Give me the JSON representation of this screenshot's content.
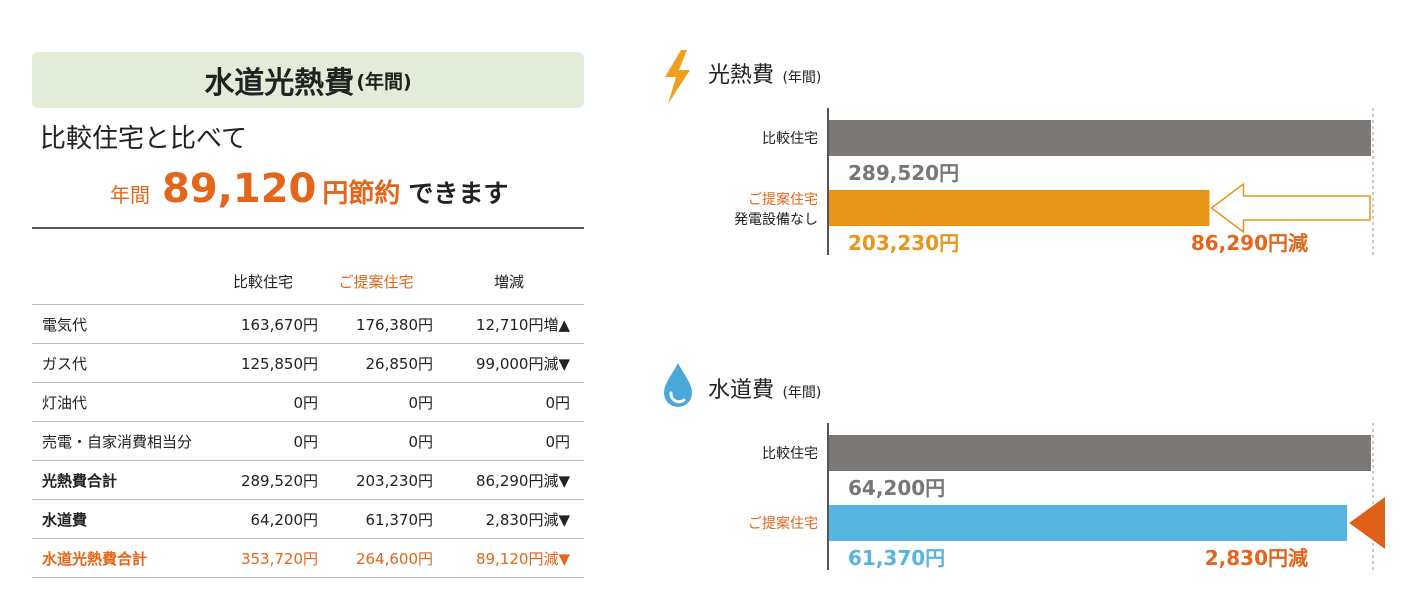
{
  "summary": {
    "title": "水道光熱費",
    "title_suffix": "(年間)",
    "subtitle": "比較住宅と比べて",
    "savings_prefix": "年間",
    "savings_amount": "89,120",
    "savings_unit": "円節約",
    "savings_suffix": "できます"
  },
  "table": {
    "headers": [
      "",
      "比較住宅",
      "ご提案住宅",
      "増減"
    ],
    "rows": [
      {
        "label": "電気代",
        "comparison": "163,670円",
        "proposed": "176,380円",
        "change": "12,710円増▲",
        "style": "normal"
      },
      {
        "label": "ガス代",
        "comparison": "125,850円",
        "proposed": "26,850円",
        "change": "99,000円減▼",
        "style": "normal"
      },
      {
        "label": "灯油代",
        "comparison": "0円",
        "proposed": "0円",
        "change": "0円",
        "style": "normal"
      },
      {
        "label": "売電・自家消費相当分",
        "comparison": "0円",
        "proposed": "0円",
        "change": "0円",
        "style": "normal"
      },
      {
        "label": "光熱費合計",
        "comparison": "289,520円",
        "proposed": "203,230円",
        "change": "86,290円減▼",
        "style": "bold"
      },
      {
        "label": "水道費",
        "comparison": "64,200円",
        "proposed": "61,370円",
        "change": "2,830円減▼",
        "style": "bold"
      },
      {
        "label": "水道光熱費合計",
        "comparison": "353,720円",
        "proposed": "264,600円",
        "change": "89,120円減▼",
        "style": "total"
      }
    ]
  },
  "chart_data": [
    {
      "type": "bar",
      "orientation": "horizontal",
      "title": "光熱費",
      "title_suffix": "(年間)",
      "icon": "lightning-icon",
      "categories": [
        "比較住宅",
        "ご提案住宅"
      ],
      "category_sublabels": [
        "",
        "発電設備なし"
      ],
      "values": [
        289520,
        203230
      ],
      "value_labels": [
        "289,520円",
        "203,230円"
      ],
      "colors": [
        "#7b7875",
        "#e8951a"
      ],
      "label_colors": [
        "#777777",
        "#e8951a"
      ],
      "category_label_colors": [
        "#222222",
        "#e5651a"
      ],
      "difference_label": "86,290円減",
      "difference_marker": "outline-arrow",
      "xlim": [
        0,
        289520
      ]
    },
    {
      "type": "bar",
      "orientation": "horizontal",
      "title": "水道費",
      "title_suffix": "(年間)",
      "icon": "water-drop-icon",
      "categories": [
        "比較住宅",
        "ご提案住宅"
      ],
      "category_sublabels": [
        "",
        ""
      ],
      "values": [
        64200,
        61370
      ],
      "value_labels": [
        "64,200円",
        "61,370円"
      ],
      "colors": [
        "#7b7875",
        "#5ab4e0"
      ],
      "label_colors": [
        "#777777",
        "#5ab4e0"
      ],
      "category_label_colors": [
        "#222222",
        "#e5651a"
      ],
      "difference_label": "2,830円減",
      "difference_marker": "solid-triangle",
      "xlim": [
        0,
        64200
      ]
    }
  ],
  "colors": {
    "accent": "#e5651a",
    "header_bg": "#e3ecd9",
    "comparison_bar": "#7b7875",
    "energy_bar": "#e8951a",
    "water_bar": "#5ab4e0",
    "lightning": "#f0a01e",
    "water_drop": "#4aa8d8",
    "triangle": "#e0601a"
  }
}
